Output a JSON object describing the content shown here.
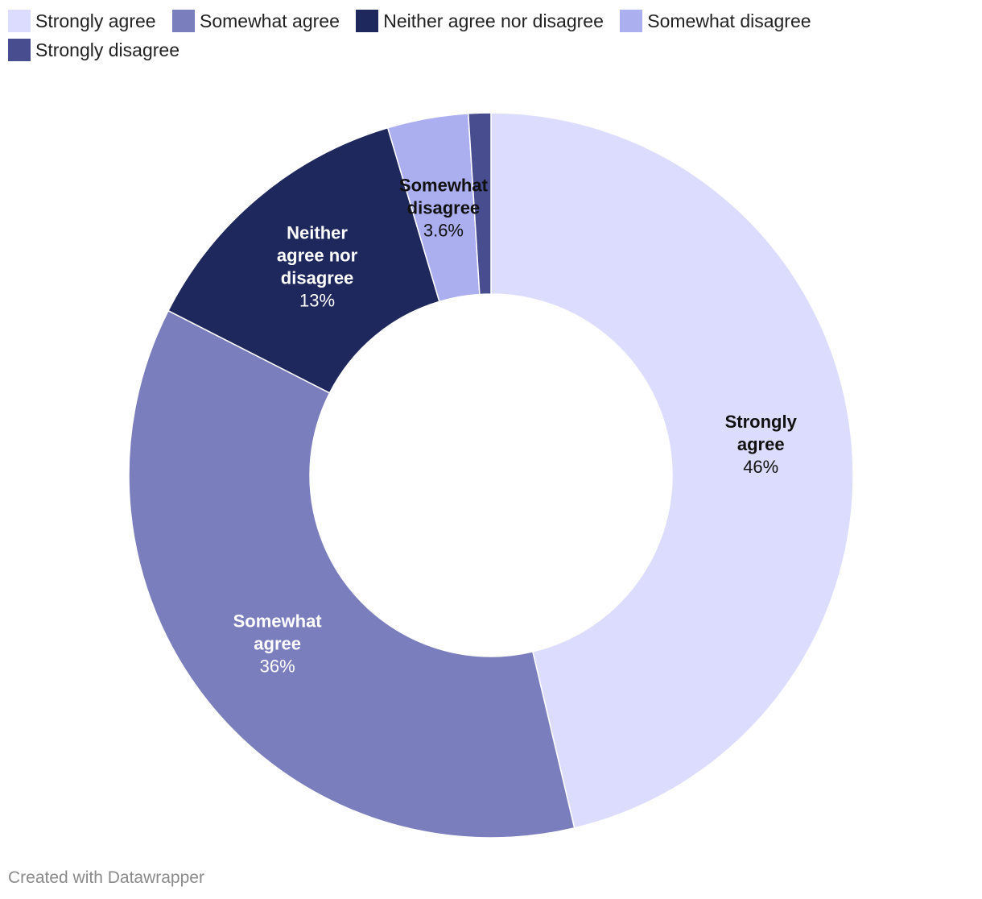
{
  "chart_data": {
    "type": "pie",
    "variant": "donut",
    "categories": [
      "Strongly agree",
      "Somewhat agree",
      "Neither agree nor disagree",
      "Somewhat disagree",
      "Strongly disagree"
    ],
    "values": [
      46.3,
      36.2,
      12.9,
      3.6,
      1.0
    ],
    "value_labels": [
      "46%",
      "36%",
      "13%",
      "3.6%",
      ""
    ],
    "slice_label_lines": [
      [
        "Strongly",
        "agree"
      ],
      [
        "Somewhat",
        "agree"
      ],
      [
        "Neither",
        "agree nor",
        "disagree"
      ],
      [
        "Somewhat",
        "disagree"
      ],
      []
    ],
    "colors": [
      "#dcdcfe",
      "#7b7ebd",
      "#1f285c",
      "#abaff0",
      "#474d8f"
    ],
    "label_colors": [
      "#111111",
      "#ffffff",
      "#ffffff",
      "#111111",
      "#ffffff"
    ],
    "legend_placement": "top"
  },
  "legend": {
    "items": [
      {
        "label": "Strongly agree",
        "color": "#dcdcfe"
      },
      {
        "label": "Somewhat agree",
        "color": "#7b7ebd"
      },
      {
        "label": "Neither agree nor disagree",
        "color": "#1f285c"
      },
      {
        "label": "Somewhat disagree",
        "color": "#abaff0"
      },
      {
        "label": "Strongly disagree",
        "color": "#474d8f"
      }
    ]
  },
  "footer": {
    "credit": "Created with Datawrapper"
  }
}
